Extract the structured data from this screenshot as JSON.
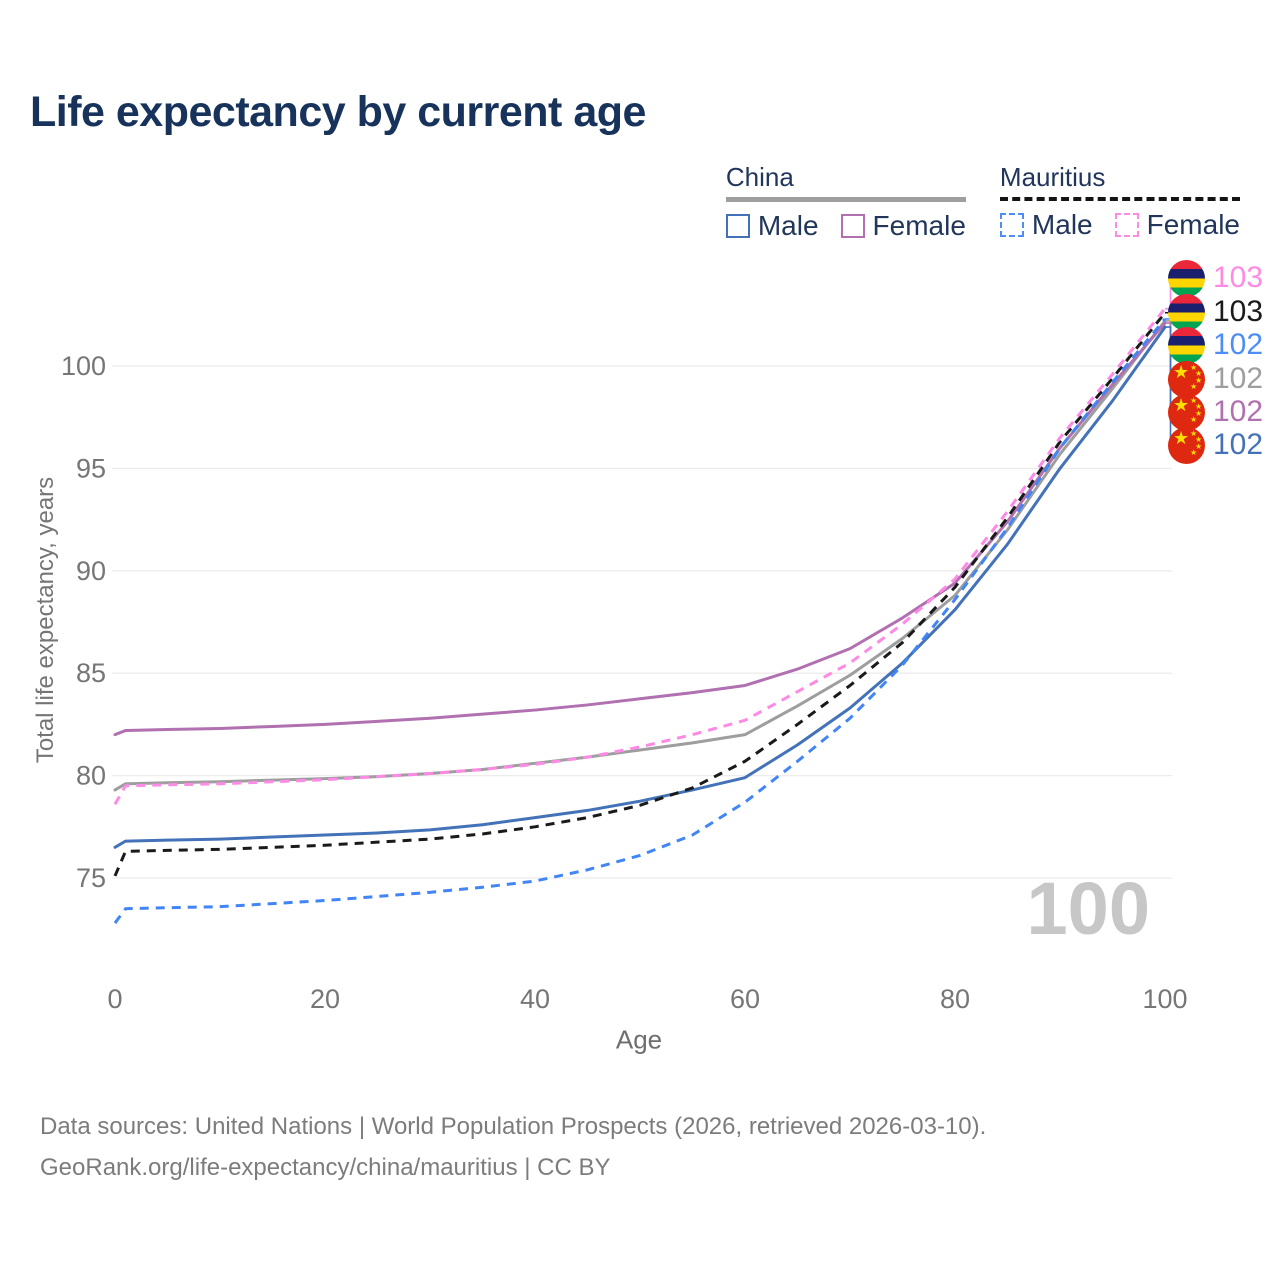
{
  "header": {
    "title": "Life expectancy by current age"
  },
  "legend": {
    "groups": [
      {
        "id": "china",
        "label": "China",
        "line_style": "solid",
        "line_color": "#9e9e9e",
        "items": [
          {
            "id": "china_male",
            "label": "Male",
            "color": "#4472b8",
            "style": "solid"
          },
          {
            "id": "china_female",
            "label": "Female",
            "color": "#b170b0",
            "style": "solid"
          }
        ]
      },
      {
        "id": "mauritius",
        "label": "Mauritius",
        "line_style": "dashed",
        "line_color": "#141414",
        "items": [
          {
            "id": "mauritius_male",
            "label": "Male",
            "color": "#4d8df5",
            "style": "dashed"
          },
          {
            "id": "mauritius_female",
            "label": "Female",
            "color": "#fd8ae4",
            "style": "dashed"
          }
        ]
      }
    ]
  },
  "chart_data": {
    "type": "line",
    "title": "Life expectancy by current age",
    "xlabel": "Age",
    "ylabel": "Total life expectancy, years",
    "x_ticks": [
      0,
      20,
      40,
      60,
      80,
      100
    ],
    "y_ticks": [
      75,
      80,
      85,
      90,
      95,
      100
    ],
    "xlim": [
      0,
      100
    ],
    "ylim": [
      72.5,
      103.5
    ],
    "grid": "horizontal",
    "legend_position": "top-right",
    "ages": [
      0,
      1,
      5,
      10,
      15,
      20,
      25,
      30,
      35,
      40,
      45,
      50,
      55,
      60,
      65,
      70,
      75,
      80,
      85,
      90,
      95,
      100
    ],
    "series": [
      {
        "id": "china_total",
        "name": "China",
        "country": "China",
        "sex": "Both",
        "style": "solid",
        "color": "#9e9e9e",
        "values": [
          79.3,
          79.6,
          79.65,
          79.7,
          79.78,
          79.85,
          79.95,
          80.1,
          80.3,
          80.6,
          80.9,
          81.25,
          81.6,
          82.0,
          83.4,
          84.9,
          86.7,
          88.8,
          92.0,
          95.7,
          98.9,
          102.2
        ]
      },
      {
        "id": "china_female",
        "name": "China Female",
        "country": "China",
        "sex": "Female",
        "style": "solid",
        "color": "#b170b0",
        "values": [
          82.0,
          82.2,
          82.25,
          82.3,
          82.4,
          82.5,
          82.65,
          82.8,
          83.0,
          83.2,
          83.45,
          83.75,
          84.05,
          84.4,
          85.2,
          86.2,
          87.7,
          89.4,
          92.4,
          96.0,
          99.1,
          102.1
        ]
      },
      {
        "id": "china_male",
        "name": "China Male",
        "country": "China",
        "sex": "Male",
        "style": "solid",
        "color": "#4472b8",
        "values": [
          76.5,
          76.8,
          76.85,
          76.9,
          77.0,
          77.1,
          77.2,
          77.35,
          77.6,
          77.95,
          78.3,
          78.75,
          79.3,
          79.9,
          81.5,
          83.3,
          85.5,
          88.1,
          91.3,
          95.0,
          98.3,
          101.9
        ]
      },
      {
        "id": "mauritius_total",
        "name": "Mauritius",
        "country": "Mauritius",
        "sex": "Both",
        "style": "dashed",
        "color": "#1a1a1a",
        "values": [
          75.1,
          76.3,
          76.35,
          76.4,
          76.5,
          76.6,
          76.75,
          76.9,
          77.15,
          77.5,
          77.95,
          78.55,
          79.4,
          80.7,
          82.5,
          84.4,
          86.5,
          89.2,
          92.6,
          96.3,
          99.4,
          102.6
        ]
      },
      {
        "id": "mauritius_male",
        "name": "Mauritius Male",
        "country": "Mauritius",
        "sex": "Male",
        "style": "dashed",
        "color": "#4285f4",
        "values": [
          72.8,
          73.5,
          73.55,
          73.6,
          73.75,
          73.9,
          74.1,
          74.3,
          74.55,
          74.85,
          75.4,
          76.1,
          77.1,
          78.7,
          80.7,
          82.8,
          85.4,
          88.6,
          92.1,
          96.0,
          99.2,
          102.3
        ]
      },
      {
        "id": "mauritius_female",
        "name": "Mauritius Female",
        "country": "Mauritius",
        "sex": "Female",
        "style": "dashed",
        "color": "#fd8ae4",
        "values": [
          78.6,
          79.5,
          79.55,
          79.6,
          79.7,
          79.8,
          79.95,
          80.1,
          80.3,
          80.55,
          80.9,
          81.4,
          82.0,
          82.7,
          84.1,
          85.5,
          87.4,
          89.6,
          92.9,
          96.5,
          99.6,
          102.8
        ]
      }
    ],
    "end_labels": [
      {
        "value": "103",
        "flag": "mauritius",
        "color": "#fd8ae4",
        "series_id": "mauritius_female"
      },
      {
        "value": "103",
        "flag": "mauritius",
        "color": "#1a1a1a",
        "series_id": "mauritius_total"
      },
      {
        "value": "102",
        "flag": "mauritius",
        "color": "#4d8df5",
        "series_id": "mauritius_male"
      },
      {
        "value": "102",
        "flag": "china",
        "color": "#9e9e9e",
        "series_id": "china_total"
      },
      {
        "value": "102",
        "flag": "china",
        "color": "#b170b0",
        "series_id": "china_female"
      },
      {
        "value": "102",
        "flag": "china",
        "color": "#4472b8",
        "series_id": "china_male"
      }
    ],
    "watermark": "100"
  },
  "footer": {
    "line1": "Data sources: United Nations | World Population Prospects (2026, retrieved 2026-03-10).",
    "line2": "GeoRank.org/life-expectancy/china/mauritius | CC BY"
  }
}
